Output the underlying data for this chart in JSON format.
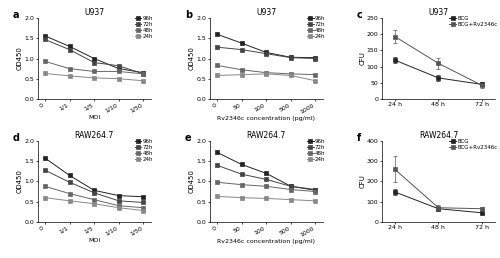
{
  "panel_a": {
    "title": "U937",
    "xlabel": "MOI",
    "ylabel": "OD450",
    "xtick_labels": [
      "0",
      "1/1",
      "1/5",
      "1/10",
      "1/50"
    ],
    "series": {
      "96h": [
        1.56,
        1.3,
        1.0,
        0.75,
        0.65
      ],
      "72h": [
        1.47,
        1.22,
        0.9,
        0.82,
        0.62
      ],
      "48h": [
        0.93,
        0.75,
        0.68,
        0.68,
        0.62
      ],
      "24h": [
        0.63,
        0.57,
        0.52,
        0.5,
        0.45
      ]
    },
    "ylim": [
      0.0,
      2.0
    ],
    "yticks": [
      0.0,
      0.5,
      1.0,
      1.5,
      2.0
    ]
  },
  "panel_b": {
    "title": "U937",
    "xlabel": "Rv2346c concentration (pg/ml)",
    "ylabel": "OD450",
    "xtick_labels": [
      "0",
      "50",
      "100",
      "500",
      "1000"
    ],
    "series": {
      "96h": [
        1.6,
        1.38,
        1.15,
        1.03,
        1.02
      ],
      "72h": [
        1.28,
        1.22,
        1.12,
        1.02,
        1.0
      ],
      "48h": [
        0.83,
        0.72,
        0.65,
        0.62,
        0.6
      ],
      "24h": [
        0.58,
        0.6,
        0.62,
        0.58,
        0.45
      ]
    },
    "ylim": [
      0.0,
      2.0
    ],
    "yticks": [
      0.0,
      0.5,
      1.0,
      1.5,
      2.0
    ]
  },
  "panel_c": {
    "title": "U937",
    "xlabel": "",
    "ylabel": "CFU",
    "xtick_labels": [
      "24 h",
      "48 h",
      "72 h"
    ],
    "series": {
      "BCG": [
        120,
        65,
        45
      ],
      "BCG+Rv2346c": [
        193,
        110,
        42
      ]
    },
    "errors": {
      "BCG": [
        10,
        8,
        6
      ],
      "BCG+Rv2346c": [
        20,
        18,
        8
      ]
    },
    "ylim": [
      0,
      250
    ],
    "yticks": [
      0,
      50,
      100,
      150,
      200,
      250
    ]
  },
  "panel_d": {
    "title": "RAW264.7",
    "xlabel": "MOI",
    "ylabel": "OD450",
    "xtick_labels": [
      "0",
      "1/1",
      "1/5",
      "1/10",
      "1/50"
    ],
    "series": {
      "96h": [
        1.58,
        1.15,
        0.78,
        0.65,
        0.62
      ],
      "72h": [
        1.28,
        0.98,
        0.72,
        0.52,
        0.48
      ],
      "48h": [
        0.88,
        0.7,
        0.55,
        0.4,
        0.35
      ],
      "24h": [
        0.6,
        0.52,
        0.45,
        0.35,
        0.28
      ]
    },
    "ylim": [
      0.0,
      2.0
    ],
    "yticks": [
      0.0,
      0.5,
      1.0,
      1.5,
      2.0
    ]
  },
  "panel_e": {
    "title": "RAW264.7",
    "xlabel": "Rv2346c concentration (pg/ml)",
    "ylabel": "OD450",
    "xtick_labels": [
      "0",
      "50",
      "100",
      "500",
      "1000"
    ],
    "series": {
      "96h": [
        1.72,
        1.42,
        1.2,
        0.88,
        0.78
      ],
      "72h": [
        1.4,
        1.18,
        1.05,
        0.88,
        0.8
      ],
      "48h": [
        0.98,
        0.92,
        0.88,
        0.8,
        0.75
      ],
      "24h": [
        0.63,
        0.6,
        0.58,
        0.55,
        0.52
      ]
    },
    "ylim": [
      0.0,
      2.0
    ],
    "yticks": [
      0.0,
      0.5,
      1.0,
      1.5,
      2.0
    ]
  },
  "panel_f": {
    "title": "RAW264.7",
    "xlabel": "",
    "ylabel": "CFU",
    "xtick_labels": [
      "24 h",
      "48 h",
      "72 h"
    ],
    "series": {
      "BCG": [
        148,
        65,
        45
      ],
      "BCG+Rv2346c": [
        260,
        70,
        65
      ]
    },
    "errors": {
      "BCG": [
        15,
        8,
        6
      ],
      "BCG+Rv2346c": [
        65,
        12,
        10
      ]
    },
    "ylim": [
      0,
      400
    ],
    "yticks": [
      0,
      100,
      200,
      300,
      400
    ]
  },
  "series_order": [
    "96h",
    "72h",
    "48h",
    "24h"
  ],
  "gray_shades": {
    "96h": "#222222",
    "72h": "#444444",
    "48h": "#666666",
    "24h": "#888888"
  },
  "cfu_series": [
    "BCG",
    "BCG+Rv2346c"
  ],
  "cfu_gray": {
    "BCG": "#222222",
    "BCG+Rv2346c": "#555555"
  }
}
